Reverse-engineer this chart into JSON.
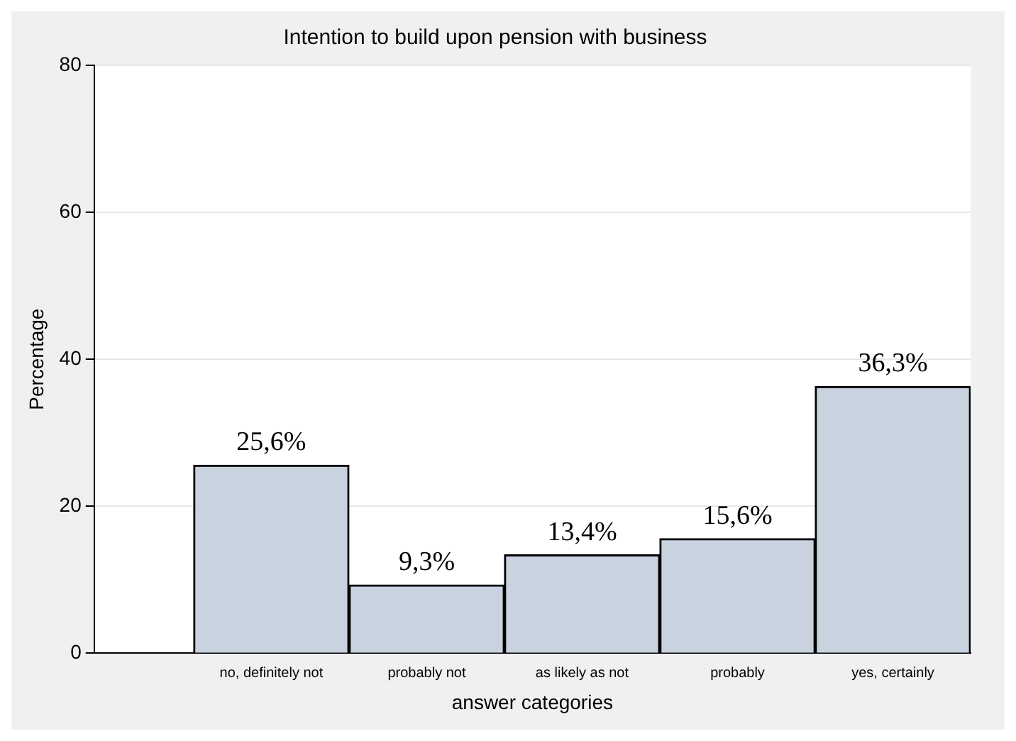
{
  "chart_data": {
    "type": "bar",
    "title": "Intention to build upon pension with business",
    "xlabel": "answer categories",
    "ylabel": "Percentage",
    "categories": [
      "no, definitely not",
      "probably not",
      "as likely as not",
      "probably",
      "yes, certainly"
    ],
    "values": [
      25.6,
      9.3,
      13.4,
      15.6,
      36.3
    ],
    "value_labels": [
      "25,6%",
      "9,3%",
      "13,4%",
      "15,6%",
      "36,3%"
    ],
    "color": "#c9d3df",
    "ylim": [
      0,
      80
    ],
    "yticks": [
      0,
      20,
      40,
      60,
      80
    ],
    "grid": "y",
    "legend": false
  }
}
